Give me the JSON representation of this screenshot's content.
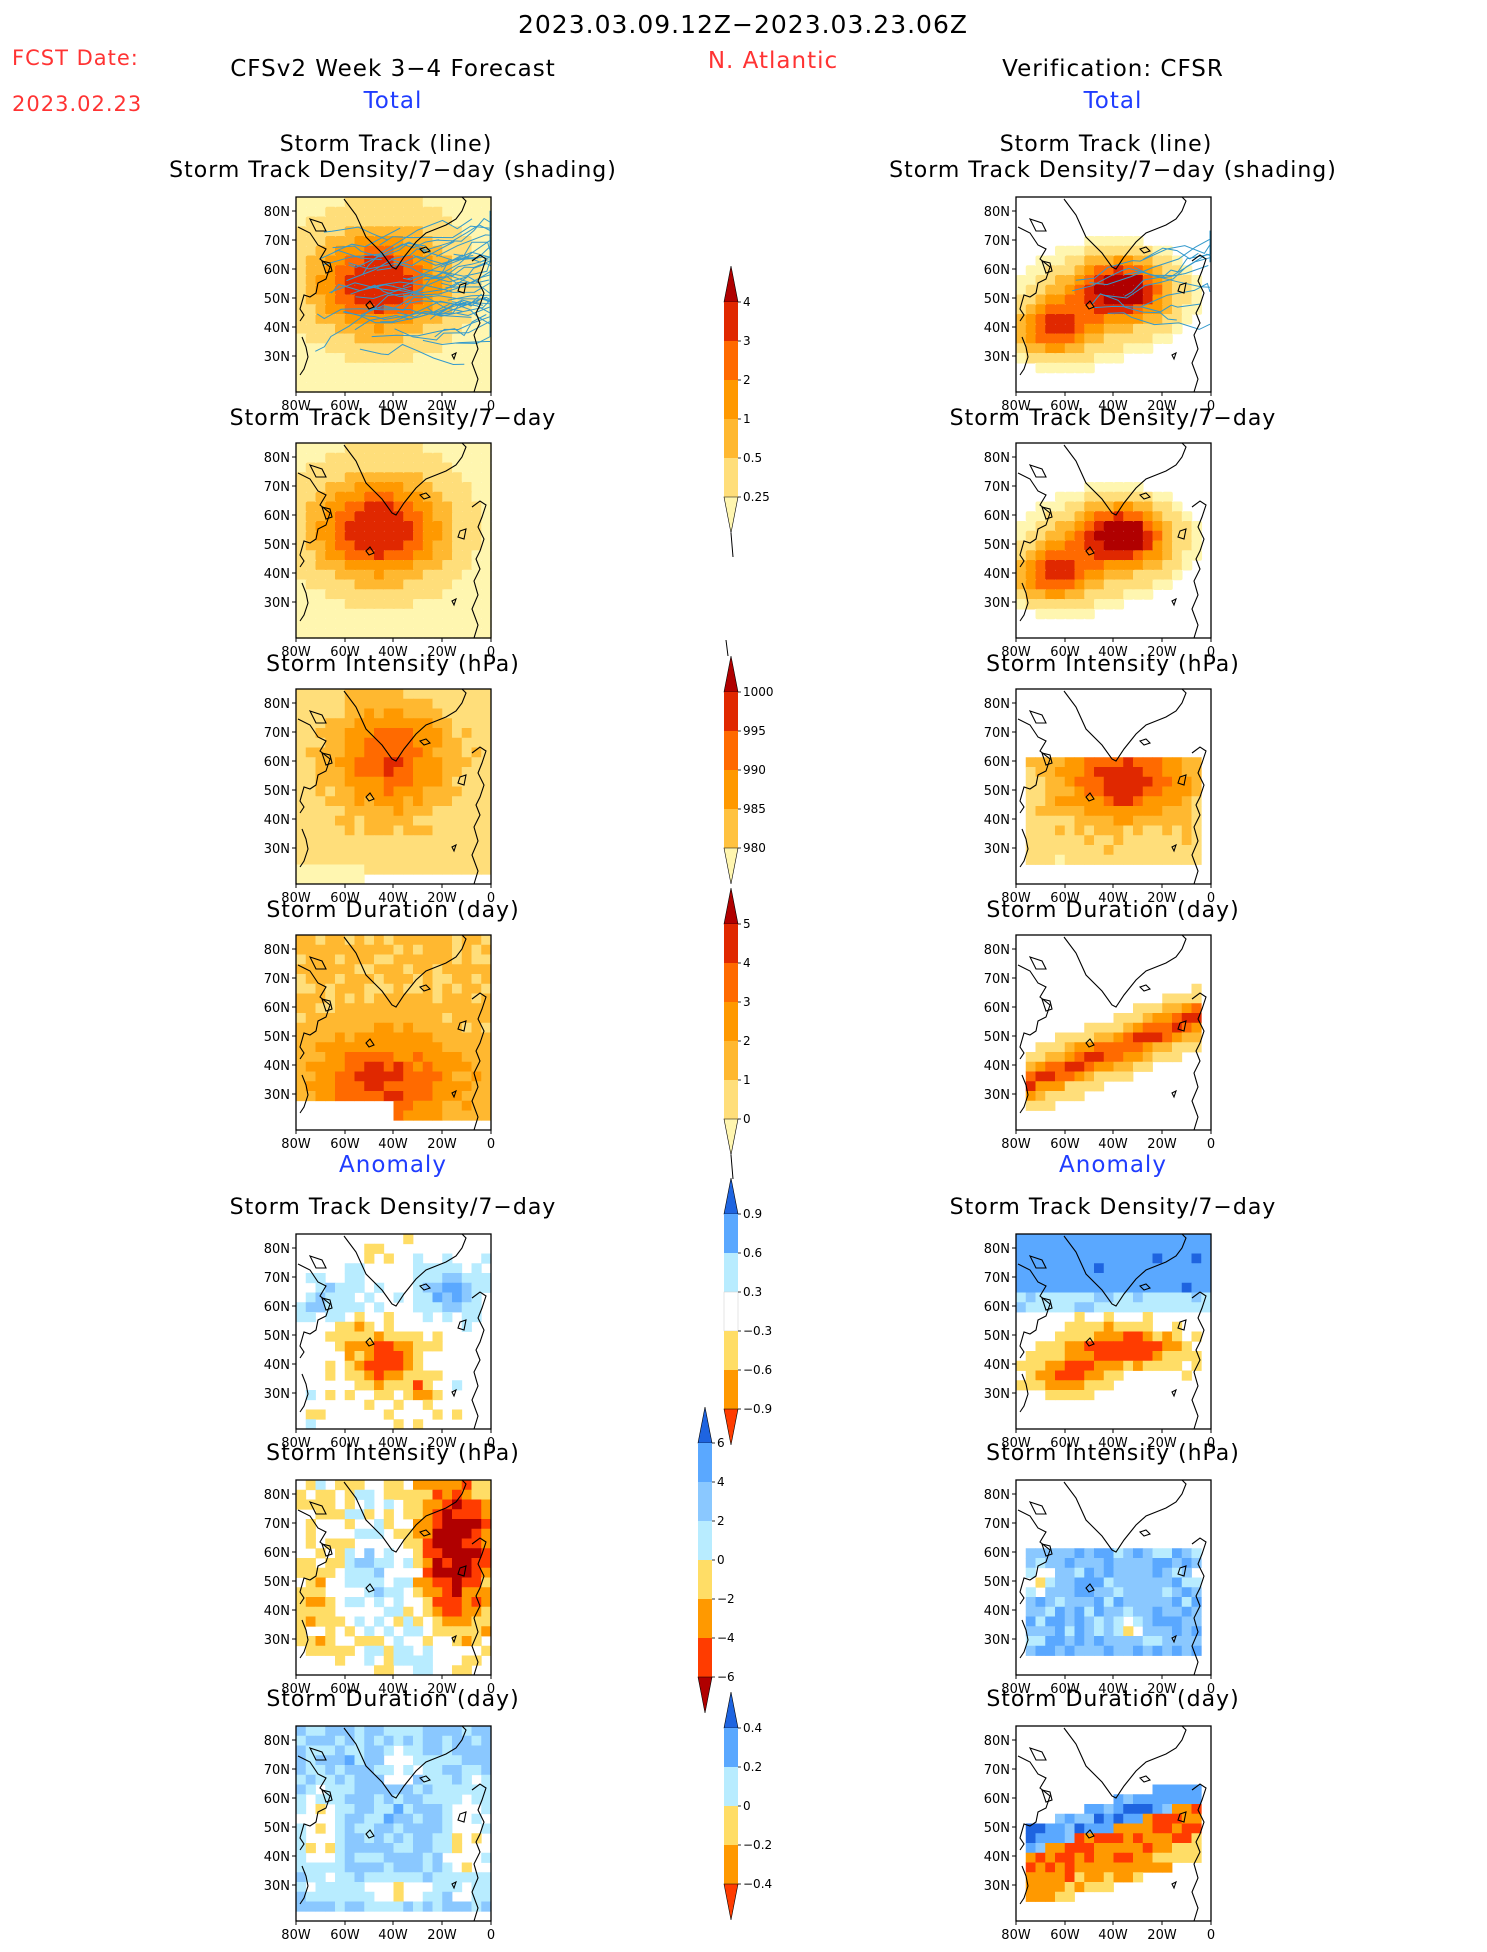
{
  "header": {
    "date_range": "2023.03.09.12Z−2023.03.23.06Z",
    "fcst_label": "FCST Date:",
    "fcst_date": "2023.02.23",
    "left_title": "CFSv2 Week 3−4 Forecast",
    "region": "N. Atlantic",
    "right_title": "Verification: CFSR",
    "total_label": "Total",
    "anomaly_label": "Anomaly"
  },
  "axes": {
    "lat_ticks": [
      "80N",
      "70N",
      "60N",
      "50N",
      "40N",
      "30N"
    ],
    "lon_ticks": [
      "80W",
      "60W",
      "40W",
      "20W",
      "0"
    ]
  },
  "panel_titles": {
    "track_line": "Storm Track (line)",
    "track_shading": "Storm Track Density/7−day (shading)",
    "density": "Storm Track Density/7−day",
    "intensity": "Storm Intensity (hPa)",
    "duration": "Storm Duration (day)"
  },
  "colorbars": {
    "density_total": {
      "labels": [
        "4",
        "3",
        "2",
        "1",
        "0.5",
        "0.25"
      ],
      "colors": [
        "#fff6b0",
        "#ffde7a",
        "#ffb830",
        "#ff9900",
        "#ff6a00",
        "#e02800",
        "#b00000"
      ]
    },
    "intensity_total": {
      "labels": [
        "1000",
        "995",
        "990",
        "985",
        "980"
      ],
      "colors": [
        "#fff6b0",
        "#ffc240",
        "#ff9900",
        "#ff6a00",
        "#e02800",
        "#b00000"
      ]
    },
    "duration_total": {
      "labels": [
        "5",
        "4",
        "3",
        "2",
        "1",
        "0"
      ],
      "colors": [
        "#fff6b0",
        "#ffde7a",
        "#ffb830",
        "#ff9900",
        "#ff6a00",
        "#e02800",
        "#b00000"
      ]
    },
    "density_anom": {
      "labels": [
        "0.9",
        "0.6",
        "0.3",
        "−0.3",
        "−0.6",
        "−0.9"
      ],
      "colors": [
        "#ff3c00",
        "#ff9900",
        "#ffdd66",
        "#ffffff",
        "#b8ecff",
        "#5aa8ff",
        "#1e64e0"
      ]
    },
    "intensity_anom": {
      "labels": [
        "6",
        "4",
        "2",
        "0",
        "−2",
        "−4",
        "−6"
      ],
      "colors": [
        "#b00000",
        "#ff3c00",
        "#ff9900",
        "#ffdd66",
        "#b8ecff",
        "#8ac8ff",
        "#5aa8ff",
        "#1e64e0"
      ]
    },
    "duration_anom": {
      "labels": [
        "0.4",
        "0.2",
        "0",
        "−0.2",
        "−0.4"
      ],
      "colors": [
        "#ff3c00",
        "#ff9900",
        "#ffdd66",
        "#b8ecff",
        "#5aa8ff",
        "#1e64e0"
      ]
    }
  },
  "colors": {
    "title_red": "#ff3333",
    "title_blue": "#1f3cff",
    "track_line": "#3399cc",
    "map_background": "#ffffff"
  }
}
